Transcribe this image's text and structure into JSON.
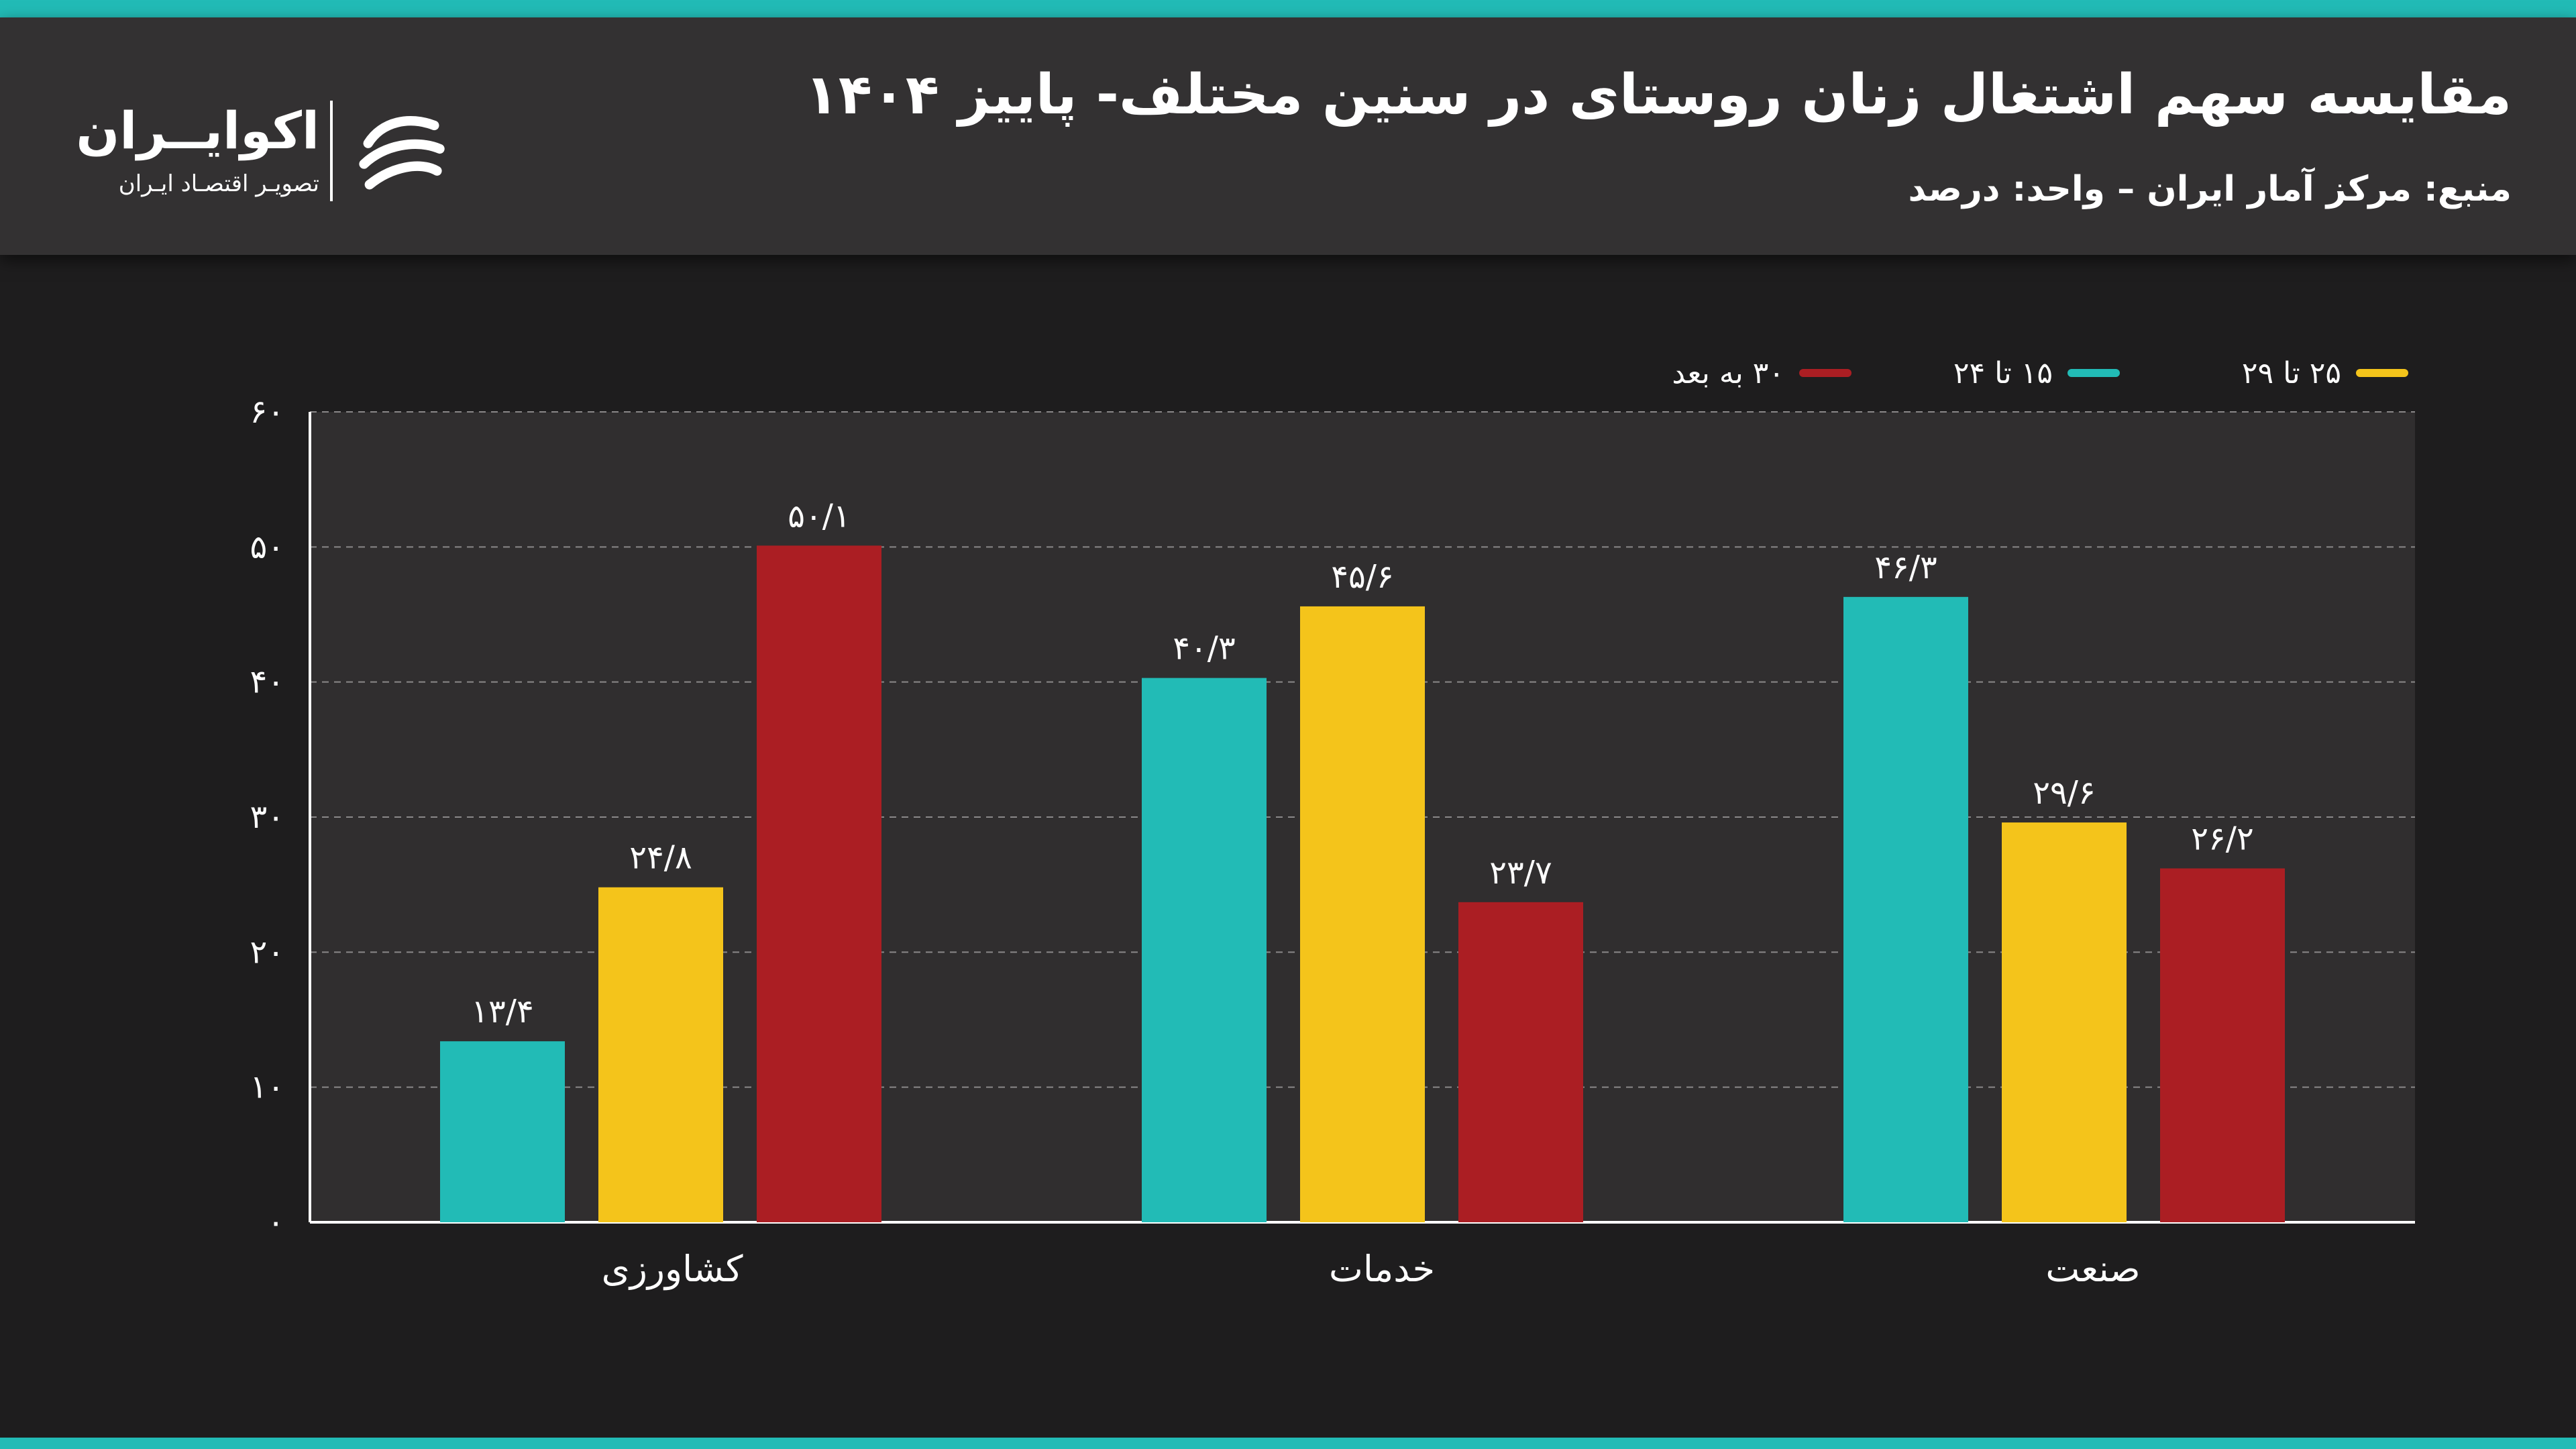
{
  "header": {
    "title": "مقایسه سهم اشتغال زنان روستای در سنین مختلف- پاییز ۱۴۰۴",
    "subtitle": "منبع: مرکز آمار ایران – واحد: درصد"
  },
  "logo": {
    "name": "اکوایــران",
    "tagline": "تصویـر اقتصـاد ایـران"
  },
  "colors": {
    "header_bg": "#333132",
    "page_bg": "#1e1d1e",
    "plot_bg": "#302e2f",
    "accent": "#22bbb6",
    "series_teal": "#22bbb6",
    "series_yellow": "#f4c41b",
    "series_red": "#ab1e23"
  },
  "chart_data": {
    "type": "bar",
    "categories": [
      "کشاورزی",
      "خدمات",
      "صنعت"
    ],
    "series": [
      {
        "name": "۱۵ تا ۲۴",
        "color": "#22bbb6",
        "values": [
          13.4,
          40.3,
          46.3
        ],
        "labels": [
          "۱۳/۴",
          "۴۰/۳",
          "۴۶/۳"
        ]
      },
      {
        "name": "۲۵ تا ۲۹",
        "color": "#f4c41b",
        "values": [
          24.8,
          45.6,
          29.6
        ],
        "labels": [
          "۲۴/۸",
          "۴۵/۶",
          "۲۹/۶"
        ]
      },
      {
        "name": "۳۰ به بعد",
        "color": "#ab1e23",
        "values": [
          50.1,
          23.7,
          26.2
        ],
        "labels": [
          "۵۰/۱",
          "۲۳/۷",
          "۲۶/۲"
        ]
      }
    ],
    "ylim": [
      0,
      60
    ],
    "yticks": [
      0,
      10,
      20,
      30,
      40,
      50,
      60
    ],
    "ytick_labels": [
      "۰",
      "۱۰",
      "۲۰",
      "۳۰",
      "۴۰",
      "۵۰",
      "۶۰"
    ],
    "grid": true,
    "legend_position": "top-right"
  }
}
